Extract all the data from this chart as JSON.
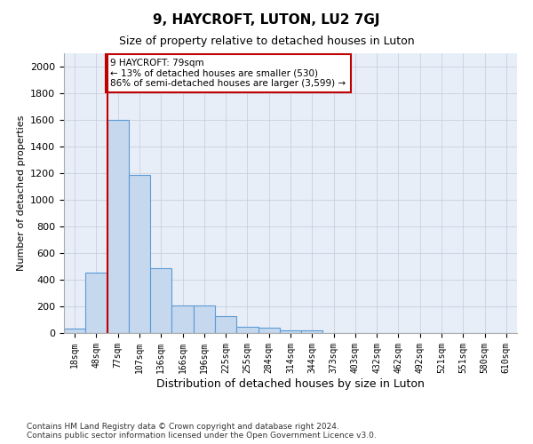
{
  "title": "9, HAYCROFT, LUTON, LU2 7GJ",
  "subtitle": "Size of property relative to detached houses in Luton",
  "xlabel": "Distribution of detached houses by size in Luton",
  "ylabel": "Number of detached properties",
  "footer_line1": "Contains HM Land Registry data © Crown copyright and database right 2024.",
  "footer_line2": "Contains public sector information licensed under the Open Government Licence v3.0.",
  "categories": [
    "18sqm",
    "48sqm",
    "77sqm",
    "107sqm",
    "136sqm",
    "166sqm",
    "196sqm",
    "225sqm",
    "255sqm",
    "284sqm",
    "314sqm",
    "344sqm",
    "373sqm",
    "403sqm",
    "432sqm",
    "462sqm",
    "492sqm",
    "521sqm",
    "551sqm",
    "580sqm",
    "610sqm"
  ],
  "values": [
    35,
    455,
    1600,
    1190,
    490,
    210,
    210,
    125,
    50,
    40,
    22,
    18,
    0,
    0,
    0,
    0,
    0,
    0,
    0,
    0,
    0
  ],
  "bar_color": "#c5d8ee",
  "bar_edge_color": "#5b9bd5",
  "highlight_color": "#c00000",
  "annotation_text": "9 HAYCROFT: 79sqm\n← 13% of detached houses are smaller (530)\n86% of semi-detached houses are larger (3,599) →",
  "annotation_box_color": "#c00000",
  "ylim": [
    0,
    2100
  ],
  "yticks": [
    0,
    200,
    400,
    600,
    800,
    1000,
    1200,
    1400,
    1600,
    1800,
    2000
  ],
  "vline_x_index": 2,
  "background_color": "#ffffff",
  "plot_bg_color": "#e8eef8",
  "grid_color": "#c8d0e0"
}
